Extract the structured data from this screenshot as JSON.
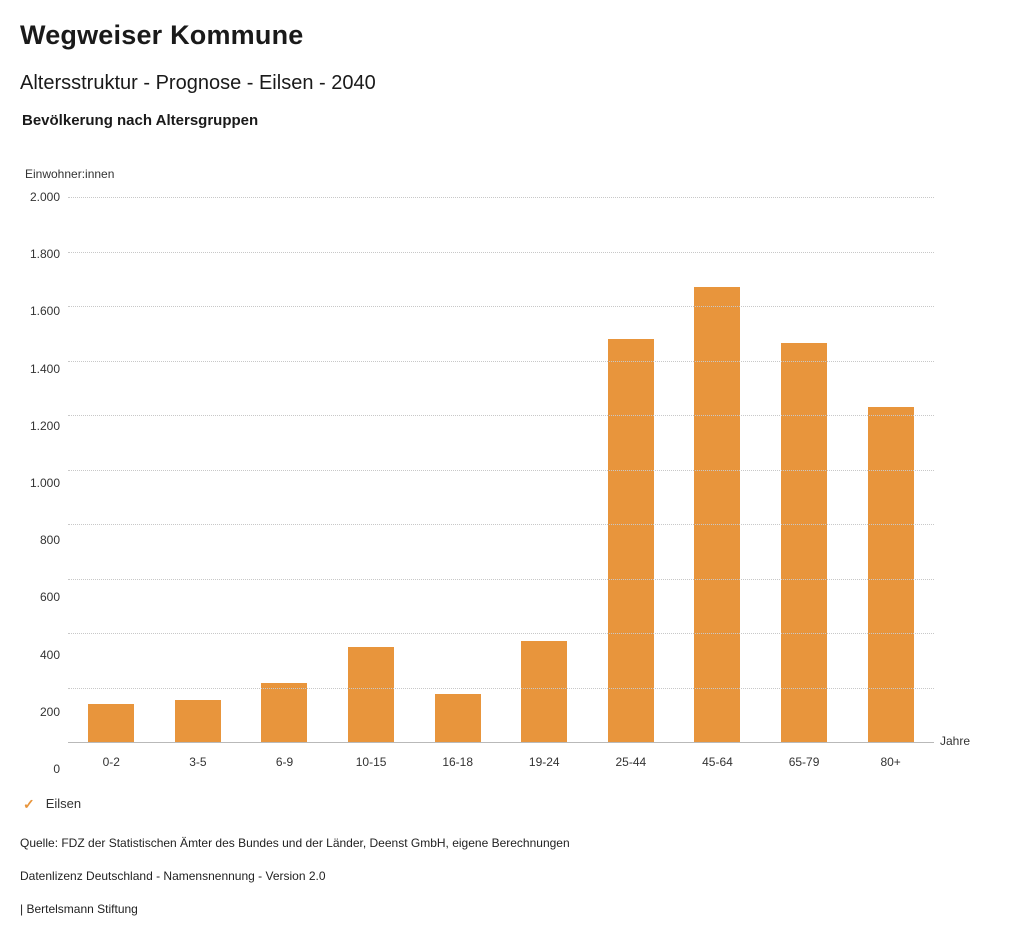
{
  "header": {
    "title": "Wegweiser Kommune",
    "subtitle": "Altersstruktur - Prognose - Eilsen - 2040",
    "heading": "Bevölkerung nach Altersgruppen"
  },
  "colors": {
    "bar": "#E8953C",
    "accent": "#E8953C",
    "gridline": "#c8c8c8"
  },
  "chart_data": {
    "type": "bar",
    "title": "Bevölkerung nach Altersgruppen",
    "ylabel": "Einwohner:innen",
    "xlabel": "Jahre",
    "categories": [
      "0-2",
      "3-5",
      "6-9",
      "10-15",
      "16-18",
      "19-24",
      "25-44",
      "45-64",
      "65-79",
      "80+"
    ],
    "series": [
      {
        "name": "Eilsen",
        "values": [
          140,
          155,
          215,
          350,
          175,
          370,
          1480,
          1670,
          1465,
          1230
        ]
      }
    ],
    "ylim": [
      0,
      2000
    ],
    "yticks": [
      {
        "value": 0,
        "label": "0"
      },
      {
        "value": 200,
        "label": "200"
      },
      {
        "value": 400,
        "label": "400"
      },
      {
        "value": 600,
        "label": "600"
      },
      {
        "value": 800,
        "label": "800"
      },
      {
        "value": 1000,
        "label": "1.000"
      },
      {
        "value": 1200,
        "label": "1.200"
      },
      {
        "value": 1400,
        "label": "1.400"
      },
      {
        "value": 1600,
        "label": "1.600"
      },
      {
        "value": 1800,
        "label": "1.800"
      },
      {
        "value": 2000,
        "label": "2.000"
      }
    ],
    "grid": "horizontal-dotted",
    "legend_position": "bottom-left"
  },
  "legend": {
    "check_icon": "✓",
    "label": "Eilsen"
  },
  "footer": {
    "source": "Quelle: FDZ der Statistischen Ämter des Bundes und der Länder, Deenst GmbH, eigene Berechnungen",
    "license": "Datenlizenz Deutschland - Namensnennung - Version 2.0",
    "attribution": "| Bertelsmann Stiftung"
  }
}
